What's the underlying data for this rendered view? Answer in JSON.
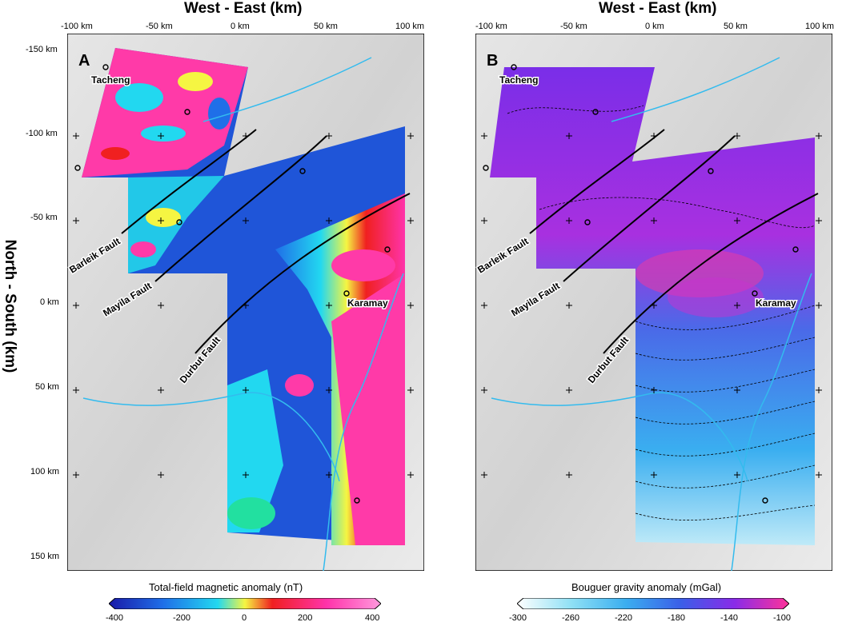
{
  "x_axis_title": "West - East (km)",
  "y_axis_title": "North - South (km)",
  "x_ticks": [
    "-100 km",
    "-50 km",
    "0 km",
    "50 km",
    "100 km"
  ],
  "y_ticks": [
    "-150 km",
    "-100 km",
    "-50 km",
    "0 km",
    "50 km",
    "100 km",
    "150 km"
  ],
  "panels": [
    {
      "letter": "A",
      "colorbar_title": "Total-field magnetic anomaly (nT)",
      "colorbar_ticks": [
        "-400",
        "-200",
        "0",
        "200",
        "400"
      ],
      "colors": [
        "#1a1aa8",
        "#1f6fe8",
        "#22d8f0",
        "#f5f542",
        "#f02020",
        "#ff33aa",
        "#ff99dd"
      ]
    },
    {
      "letter": "B",
      "colorbar_title": "Bouguer gravity anomaly (mGal)",
      "colorbar_ticks": [
        "-300",
        "-260",
        "-220",
        "-180",
        "-140",
        "-100"
      ],
      "colors": [
        "#ffffff",
        "#8fe0f5",
        "#3aaef0",
        "#3a5fe8",
        "#8a2be8",
        "#ff3399"
      ]
    }
  ],
  "towns": [
    "Tacheng",
    "Karamay"
  ],
  "faults": [
    "Barleik Fault",
    "Mayila Fault",
    "Durbut Fault"
  ]
}
